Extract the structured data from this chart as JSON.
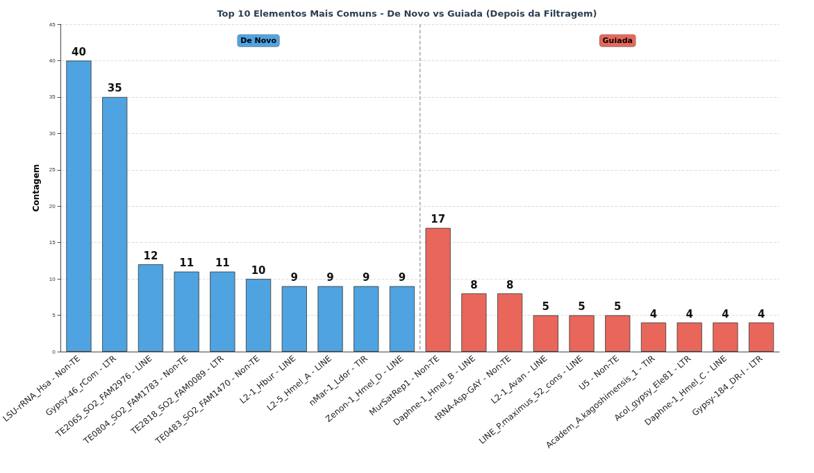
{
  "chart_data": {
    "type": "bar",
    "title": "Top 10 Elementos Mais Comuns - De Novo vs Guiada (Depois da Filtragem)",
    "ylabel": "Contagem",
    "categories": [
      "LSU-rRNA_Hsa - Non-TE",
      "Gypsy-46_rCom - LTR",
      "TE2065_SO2_FAM2976 - LINE",
      "TE0804_SO2_FAM1783 - Non-TE",
      "TE2818_SO2_FAM0089 - LTR",
      "TE0483_SO2_FAM1470 - Non-TE",
      "L2-1_Hbur - LINE",
      "L2-5_Hmel_A - LINE",
      "nMar-1_Ldor - TIR",
      "Zenon-1_Hmel_D - LINE",
      "MurSatRep1 - Non-TE",
      "Daphne-1_Hmel_B - LINE",
      "tRNA-Asp-GAY - Non-TE",
      "L2-1_Avan - LINE",
      "LINE_P.maximus_52_cons - LINE",
      "U5 - Non-TE",
      "Academ_A.kagoshimensis_1 - TIR",
      "Acol_gypsy_Ele81 - LTR",
      "Daphne-1_Hmel_C - LINE",
      "Gypsy-184_DR-I - LTR"
    ],
    "series": [
      {
        "name": "De Novo",
        "color": "#4fa3e0",
        "values": [
          40,
          35,
          12,
          11,
          11,
          10,
          9,
          9,
          9,
          9,
          null,
          null,
          null,
          null,
          null,
          null,
          null,
          null,
          null,
          null
        ]
      },
      {
        "name": "Guiada",
        "color": "#e8675a",
        "values": [
          null,
          null,
          null,
          null,
          null,
          null,
          null,
          null,
          null,
          null,
          17,
          8,
          8,
          5,
          5,
          5,
          4,
          4,
          4,
          4
        ]
      }
    ],
    "stacked": true,
    "data_labels": true,
    "ylim": [
      0,
      45
    ],
    "yticks": [
      0,
      5,
      10,
      15,
      20,
      25,
      30,
      35,
      40,
      45
    ],
    "grid": "y"
  }
}
